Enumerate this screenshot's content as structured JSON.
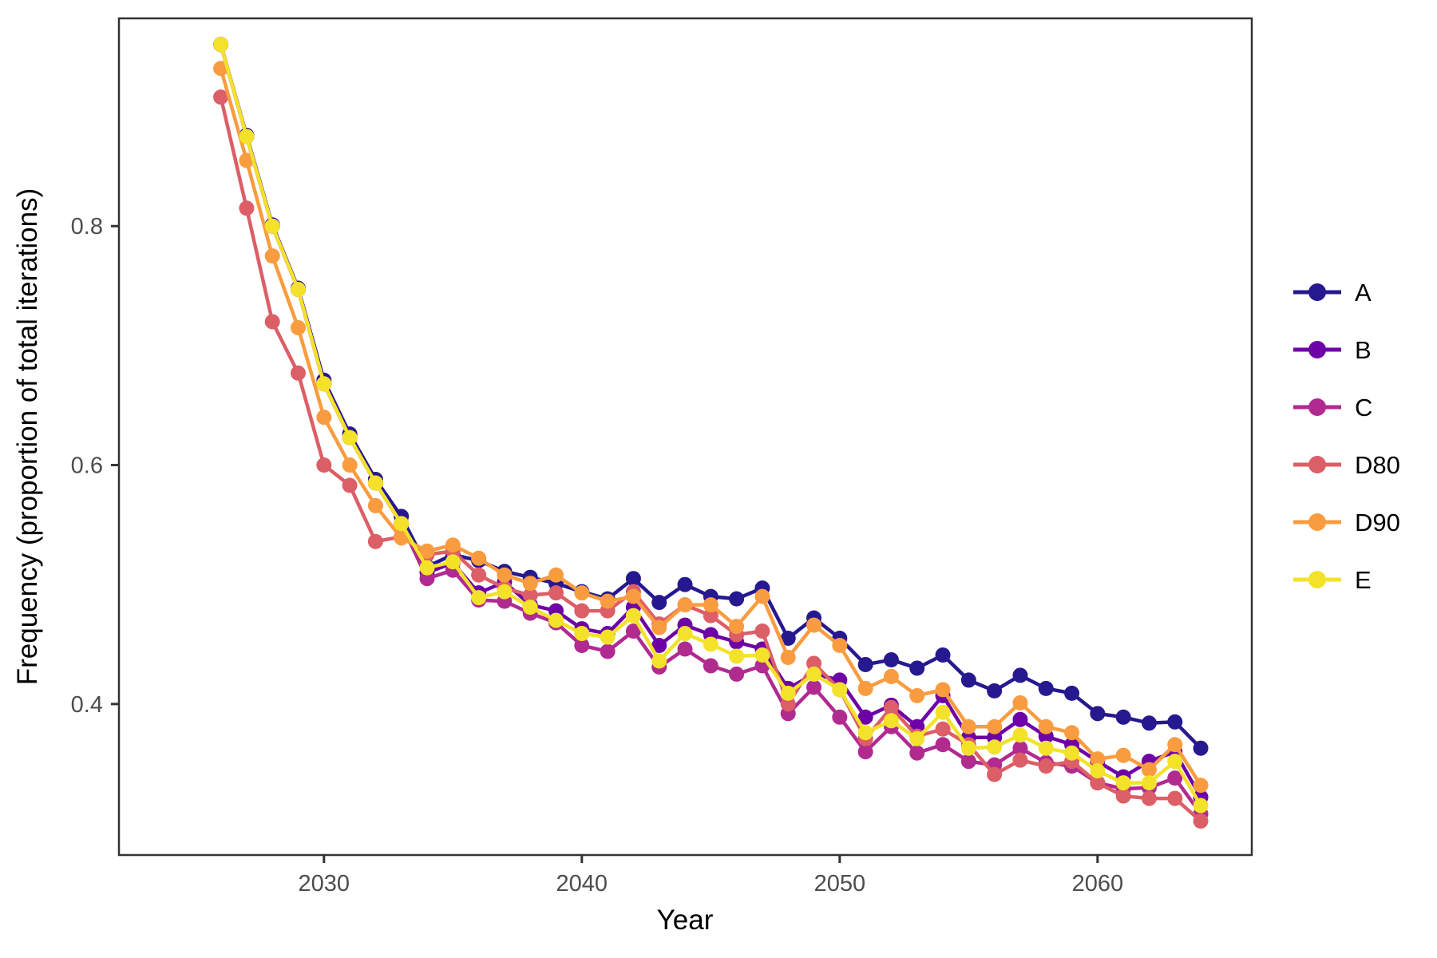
{
  "figure": {
    "background": "#ffffff",
    "panel_border_color": "#333333",
    "tick_mark_color": "#333333",
    "tick_label_color": "#4d4d4d",
    "axis_title_color": "#000000"
  },
  "chart_data": {
    "type": "line",
    "title": "",
    "xlabel": "Year",
    "ylabel": "Frequency (proportion of total iterations)",
    "grid": false,
    "legend_position": "right",
    "xlim": [
      2022.05,
      2065.98
    ],
    "ylim": [
      0.2736,
      0.9739
    ],
    "x_ticks": [
      2030,
      2040,
      2050,
      2060
    ],
    "x_tick_labels": [
      "2030",
      "2040",
      "2050",
      "2060"
    ],
    "y_ticks": [
      0.4,
      0.6,
      0.8
    ],
    "y_tick_labels": [
      "0.4",
      "0.6",
      "0.8"
    ],
    "x": [
      2026,
      2027,
      2028,
      2029,
      2030,
      2031,
      2032,
      2033,
      2034,
      2035,
      2036,
      2037,
      2038,
      2039,
      2040,
      2041,
      2042,
      2043,
      2044,
      2045,
      2046,
      2047,
      2048,
      2049,
      2050,
      2051,
      2052,
      2053,
      2054,
      2055,
      2056,
      2057,
      2058,
      2059,
      2060,
      2061,
      2062,
      2063,
      2064
    ],
    "series": [
      {
        "name": "A",
        "color": "#26188F",
        "values": [
          0.952,
          0.876,
          0.801,
          0.748,
          0.671,
          0.626,
          0.588,
          0.557,
          0.515,
          0.525,
          0.52,
          0.511,
          0.506,
          0.501,
          0.494,
          0.488,
          0.505,
          0.485,
          0.5,
          0.49,
          0.488,
          0.497,
          0.455,
          0.472,
          0.455,
          0.433,
          0.437,
          0.43,
          0.441,
          0.42,
          0.411,
          0.424,
          0.413,
          0.409,
          0.392,
          0.389,
          0.384,
          0.385,
          0.363
        ]
      },
      {
        "name": "B",
        "color": "#6E00A8",
        "values": [
          0.952,
          0.875,
          0.8,
          0.747,
          0.668,
          0.623,
          0.585,
          0.551,
          0.51,
          0.518,
          0.493,
          0.502,
          0.483,
          0.478,
          0.463,
          0.459,
          0.481,
          0.449,
          0.466,
          0.458,
          0.452,
          0.446,
          0.413,
          0.425,
          0.42,
          0.389,
          0.399,
          0.381,
          0.407,
          0.372,
          0.372,
          0.387,
          0.373,
          0.366,
          0.352,
          0.339,
          0.352,
          0.36,
          0.322
        ]
      },
      {
        "name": "C",
        "color": "#B12A90",
        "values": [
          0.952,
          0.875,
          0.8,
          0.747,
          0.668,
          0.623,
          0.585,
          0.551,
          0.505,
          0.512,
          0.487,
          0.486,
          0.476,
          0.468,
          0.449,
          0.444,
          0.461,
          0.431,
          0.446,
          0.432,
          0.425,
          0.432,
          0.392,
          0.414,
          0.389,
          0.36,
          0.381,
          0.359,
          0.366,
          0.352,
          0.349,
          0.363,
          0.351,
          0.348,
          0.334,
          0.329,
          0.33,
          0.338,
          0.308
        ]
      },
      {
        "name": "D80",
        "color": "#DC5E66",
        "values": [
          0.908,
          0.815,
          0.72,
          0.677,
          0.6,
          0.583,
          0.536,
          0.54,
          0.525,
          0.528,
          0.508,
          0.497,
          0.491,
          0.493,
          0.478,
          0.478,
          0.494,
          0.467,
          0.483,
          0.474,
          0.458,
          0.461,
          0.4,
          0.434,
          0.412,
          0.371,
          0.397,
          0.373,
          0.379,
          0.366,
          0.341,
          0.353,
          0.348,
          0.352,
          0.334,
          0.323,
          0.321,
          0.321,
          0.302
        ]
      },
      {
        "name": "D90",
        "color": "#F99C3F",
        "values": [
          0.932,
          0.855,
          0.775,
          0.715,
          0.64,
          0.6,
          0.566,
          0.539,
          0.528,
          0.533,
          0.522,
          0.508,
          0.501,
          0.508,
          0.493,
          0.486,
          0.49,
          0.464,
          0.483,
          0.483,
          0.465,
          0.49,
          0.439,
          0.466,
          0.449,
          0.413,
          0.423,
          0.407,
          0.412,
          0.381,
          0.381,
          0.401,
          0.381,
          0.376,
          0.354,
          0.357,
          0.345,
          0.366,
          0.332
        ]
      },
      {
        "name": "E",
        "color": "#F3E229",
        "values": [
          0.952,
          0.875,
          0.8,
          0.747,
          0.668,
          0.623,
          0.585,
          0.551,
          0.514,
          0.519,
          0.489,
          0.494,
          0.481,
          0.47,
          0.459,
          0.456,
          0.474,
          0.436,
          0.459,
          0.45,
          0.44,
          0.441,
          0.409,
          0.425,
          0.412,
          0.376,
          0.386,
          0.371,
          0.393,
          0.363,
          0.364,
          0.374,
          0.363,
          0.359,
          0.344,
          0.334,
          0.334,
          0.352,
          0.315
        ]
      }
    ]
  }
}
